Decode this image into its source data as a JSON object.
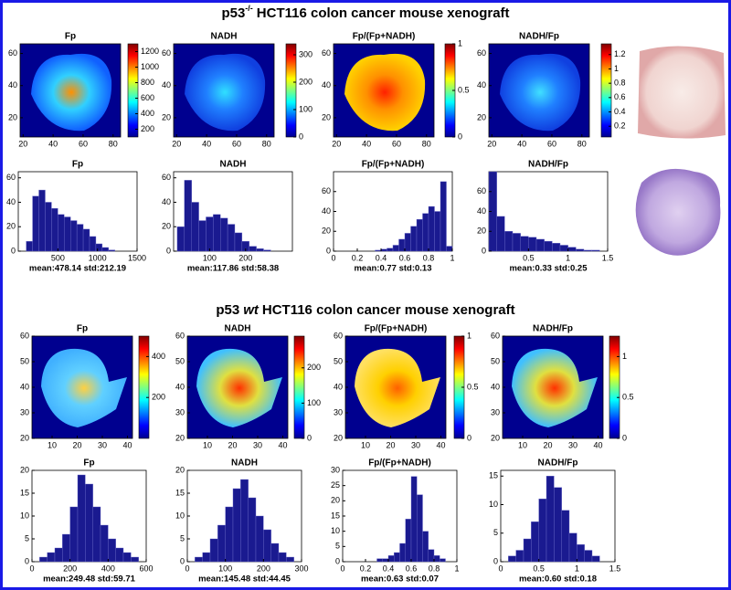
{
  "sections": [
    {
      "title": {
        "prefix": "p53",
        "sup": "-/-",
        "rest": "HCT116 colon cancer mouse xenograft"
      },
      "maps": [
        {
          "title": "Fp",
          "xlim": [
            18,
            85
          ],
          "ylim": [
            8,
            66
          ],
          "xticks": [
            20,
            40,
            60,
            80
          ],
          "yticks": [
            20,
            40,
            60
          ],
          "clim": [
            100,
            1300
          ],
          "cticks": [
            200,
            400,
            600,
            800,
            1000,
            1200
          ]
        },
        {
          "title": "NADH",
          "xlim": [
            18,
            85
          ],
          "ylim": [
            8,
            66
          ],
          "xticks": [
            20,
            40,
            60,
            80
          ],
          "yticks": [
            20,
            40,
            60
          ],
          "clim": [
            0,
            340
          ],
          "cticks": [
            0,
            100,
            200,
            300
          ]
        },
        {
          "title": "Fp/(Fp+NADH)",
          "xlim": [
            18,
            85
          ],
          "ylim": [
            8,
            66
          ],
          "xticks": [
            20,
            40,
            60,
            80
          ],
          "yticks": [
            20,
            40,
            60
          ],
          "clim": [
            0,
            1
          ],
          "cticks": [
            0,
            0.5,
            1
          ]
        },
        {
          "title": "NADH/Fp",
          "xlim": [
            18,
            85
          ],
          "ylim": [
            8,
            66
          ],
          "xticks": [
            20,
            40,
            60,
            80
          ],
          "yticks": [
            20,
            40,
            60
          ],
          "clim": [
            0.05,
            1.35
          ],
          "cticks": [
            0.2,
            0.4,
            0.6,
            0.8,
            1,
            1.2
          ]
        }
      ],
      "hists": [
        {
          "type": "histogram",
          "title": "Fp",
          "xlim": [
            0,
            1500
          ],
          "ylim": [
            0,
            65
          ],
          "xticks": [
            500,
            1000,
            1500
          ],
          "yticks": [
            0,
            20,
            40,
            60
          ],
          "bins": [
            100,
            180,
            260,
            340,
            420,
            500,
            580,
            660,
            740,
            820,
            900,
            980,
            1060,
            1140,
            1220,
            1300
          ],
          "counts": [
            8,
            45,
            50,
            40,
            35,
            30,
            28,
            25,
            22,
            18,
            12,
            6,
            3,
            1,
            0
          ],
          "stats": "mean:478.14 std:212.19"
        },
        {
          "type": "histogram",
          "title": "NADH",
          "xlim": [
            0,
            330
          ],
          "ylim": [
            0,
            65
          ],
          "xticks": [
            100,
            200
          ],
          "yticks": [
            0,
            20,
            40,
            60
          ],
          "bins": [
            10,
            30,
            50,
            70,
            90,
            110,
            130,
            150,
            170,
            190,
            210,
            230,
            250,
            270,
            290,
            310
          ],
          "counts": [
            20,
            58,
            40,
            25,
            28,
            30,
            27,
            22,
            15,
            8,
            4,
            2,
            1,
            0,
            0
          ],
          "stats": "mean:117.86 std:58.38"
        },
        {
          "type": "histogram",
          "title": "Fp/(Fp+NADH)",
          "xlim": [
            0,
            1
          ],
          "ylim": [
            0,
            80
          ],
          "xticks": [
            0,
            0.2,
            0.4,
            0.6,
            0.8,
            1
          ],
          "yticks": [
            0,
            20,
            40,
            60
          ],
          "bins": [
            0.3,
            0.35,
            0.4,
            0.45,
            0.5,
            0.55,
            0.6,
            0.65,
            0.7,
            0.75,
            0.8,
            0.85,
            0.9,
            0.95,
            1
          ],
          "counts": [
            0,
            1,
            2,
            3,
            6,
            12,
            18,
            25,
            32,
            38,
            45,
            40,
            70,
            5
          ],
          "stats": "mean:0.77 std:0.13"
        },
        {
          "type": "histogram",
          "title": "NADH/Fp",
          "xlim": [
            0,
            1.5
          ],
          "ylim": [
            0,
            80
          ],
          "xticks": [
            0.5,
            1,
            1.5
          ],
          "yticks": [
            0,
            20,
            40,
            60
          ],
          "bins": [
            0,
            0.1,
            0.2,
            0.3,
            0.4,
            0.5,
            0.6,
            0.7,
            0.8,
            0.9,
            1,
            1.1,
            1.2,
            1.3,
            1.4,
            1.5
          ],
          "counts": [
            80,
            35,
            20,
            18,
            15,
            14,
            12,
            10,
            8,
            6,
            4,
            2,
            1,
            1,
            0
          ],
          "stats": "mean:0.33 std:0.25"
        }
      ]
    },
    {
      "title": {
        "prefix": "p53",
        "italic": "wt",
        "rest": "HCT116 colon cancer mouse xenograft"
      },
      "maps": [
        {
          "title": "Fp",
          "xlim": [
            2,
            42
          ],
          "ylim": [
            20,
            60
          ],
          "xticks": [
            10,
            20,
            30,
            40
          ],
          "yticks": [
            20,
            30,
            40,
            50,
            60
          ],
          "clim": [
            0,
            500
          ],
          "cticks": [
            200,
            400
          ]
        },
        {
          "title": "NADH",
          "xlim": [
            2,
            42
          ],
          "ylim": [
            20,
            60
          ],
          "xticks": [
            10,
            20,
            30,
            40
          ],
          "yticks": [
            20,
            30,
            40,
            50,
            60
          ],
          "clim": [
            0,
            290
          ],
          "cticks": [
            0,
            100,
            200
          ]
        },
        {
          "title": "Fp/(Fp+NADH)",
          "xlim": [
            2,
            42
          ],
          "ylim": [
            20,
            60
          ],
          "xticks": [
            10,
            20,
            30,
            40
          ],
          "yticks": [
            20,
            30,
            40,
            50,
            60
          ],
          "clim": [
            0,
            1
          ],
          "cticks": [
            0,
            0.5,
            1
          ]
        },
        {
          "title": "NADH/Fp",
          "xlim": [
            2,
            42
          ],
          "ylim": [
            20,
            60
          ],
          "xticks": [
            10,
            20,
            30,
            40
          ],
          "yticks": [
            20,
            30,
            40,
            50,
            60
          ],
          "clim": [
            0,
            1.25
          ],
          "cticks": [
            0,
            0.5,
            1
          ]
        }
      ],
      "hists": [
        {
          "type": "histogram",
          "title": "Fp",
          "xlim": [
            0,
            600
          ],
          "ylim": [
            0,
            20
          ],
          "xticks": [
            0,
            200,
            400,
            600
          ],
          "yticks": [
            0,
            5,
            10,
            15,
            20
          ],
          "bins": [
            40,
            80,
            120,
            160,
            200,
            240,
            280,
            320,
            360,
            400,
            440,
            480,
            520,
            560
          ],
          "counts": [
            1,
            2,
            3,
            6,
            12,
            19,
            17,
            12,
            8,
            5,
            3,
            2,
            1
          ],
          "stats": "mean:249.48 std:59.71"
        },
        {
          "type": "histogram",
          "title": "NADH",
          "xlim": [
            0,
            300
          ],
          "ylim": [
            0,
            20
          ],
          "xticks": [
            0,
            100,
            200,
            300
          ],
          "yticks": [
            0,
            5,
            10,
            15,
            20
          ],
          "bins": [
            20,
            40,
            60,
            80,
            100,
            120,
            140,
            160,
            180,
            200,
            220,
            240,
            260,
            280
          ],
          "counts": [
            1,
            2,
            5,
            8,
            12,
            16,
            18,
            14,
            10,
            7,
            4,
            2,
            1
          ],
          "stats": "mean:145.48 std:44.45"
        },
        {
          "type": "histogram",
          "title": "Fp/(Fp+NADH)",
          "xlim": [
            0,
            1
          ],
          "ylim": [
            0,
            30
          ],
          "xticks": [
            0,
            0.2,
            0.4,
            0.6,
            0.8,
            1
          ],
          "yticks": [
            0,
            5,
            10,
            15,
            20,
            25,
            30
          ],
          "bins": [
            0.3,
            0.35,
            0.4,
            0.45,
            0.5,
            0.55,
            0.6,
            0.65,
            0.7,
            0.75,
            0.8,
            0.85,
            0.9
          ],
          "counts": [
            1,
            1,
            2,
            3,
            6,
            14,
            28,
            22,
            10,
            4,
            2,
            1
          ],
          "stats": "mean:0.63 std:0.07"
        },
        {
          "type": "histogram",
          "title": "NADH/Fp",
          "xlim": [
            0,
            1.5
          ],
          "ylim": [
            0,
            16
          ],
          "xticks": [
            0,
            0.5,
            1,
            1.5
          ],
          "yticks": [
            0,
            5,
            10,
            15
          ],
          "bins": [
            0,
            0.1,
            0.2,
            0.3,
            0.4,
            0.5,
            0.6,
            0.7,
            0.8,
            0.9,
            1,
            1.1,
            1.2,
            1.3,
            1.4,
            1.5
          ],
          "counts": [
            0,
            1,
            2,
            4,
            7,
            11,
            15,
            13,
            9,
            5,
            3,
            2,
            1,
            0,
            0
          ],
          "stats": "mean:0.60 std:0.18"
        }
      ]
    }
  ]
}
